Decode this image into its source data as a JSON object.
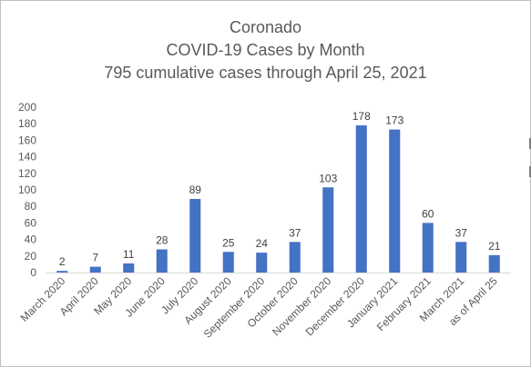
{
  "chart_data": {
    "type": "bar",
    "title_lines": [
      "Coronado",
      "COVID-19 Cases by Month",
      "795 cumulative cases through April 25, 2021"
    ],
    "categories": [
      "March 2020",
      "April 2020",
      "May 2020",
      "June 2020",
      "July 2020",
      "August 2020",
      "September 2020",
      "October 2020",
      "November 2020",
      "December 2020",
      "January 2021",
      "February 2021",
      "March 2021",
      "as of April 25"
    ],
    "values": [
      2,
      7,
      11,
      28,
      89,
      25,
      24,
      37,
      103,
      178,
      173,
      60,
      37,
      21
    ],
    "ylim": [
      0,
      200
    ],
    "yticks": [
      0,
      20,
      40,
      60,
      80,
      100,
      120,
      140,
      160,
      180,
      200
    ],
    "grid": false,
    "legend": "none",
    "bar_color": "#4472c4"
  }
}
